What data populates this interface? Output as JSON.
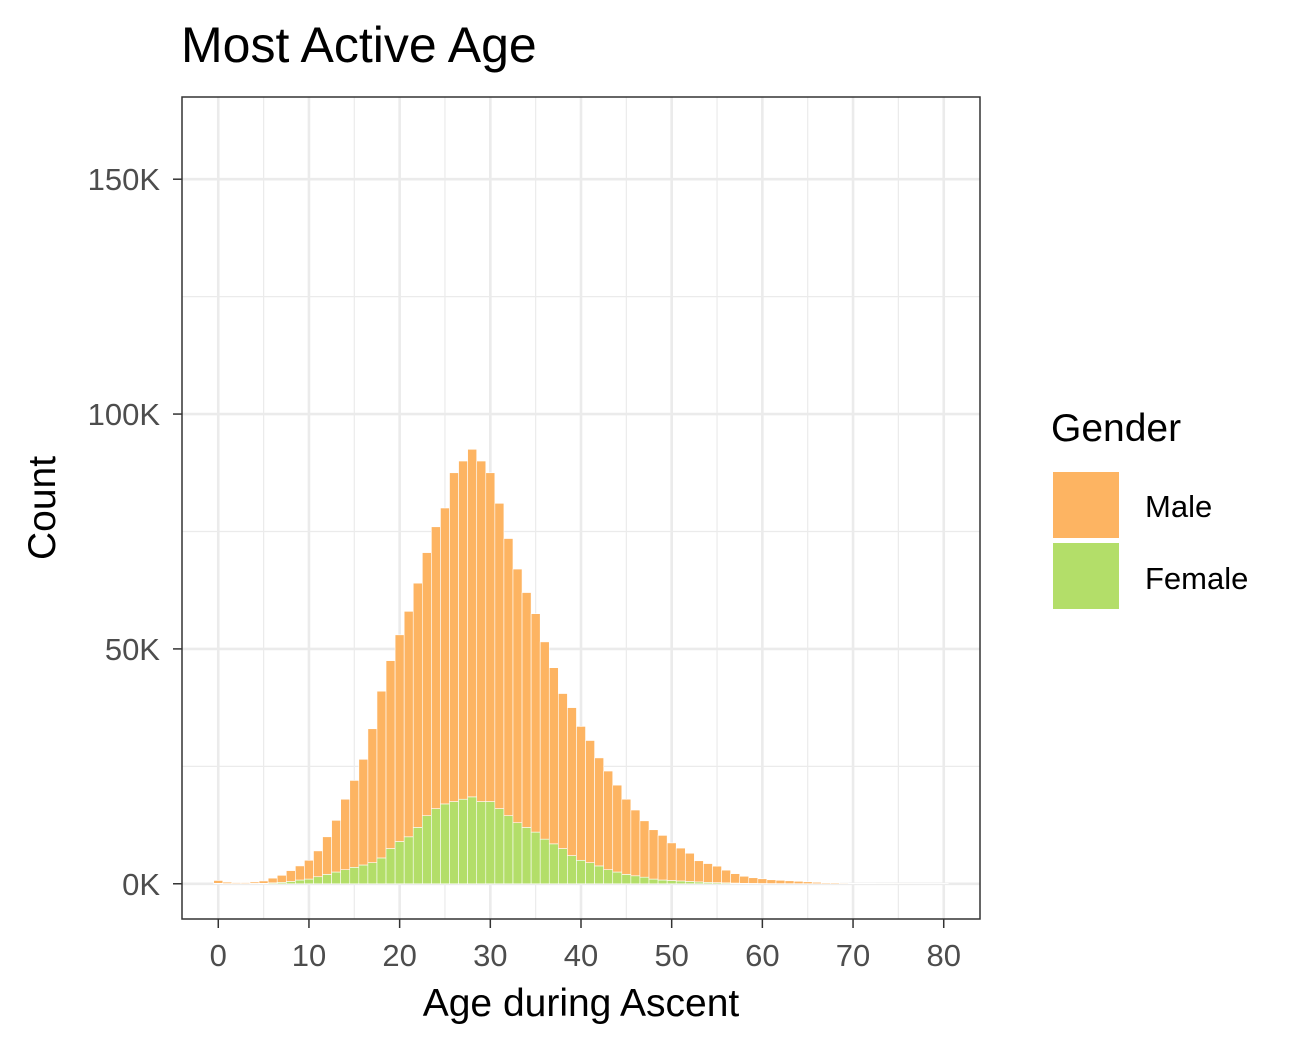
{
  "chart_data": {
    "type": "bar",
    "stacked": true,
    "title": "Most Active Age",
    "xlabel": "Age during Ascent",
    "ylabel": "Count",
    "xlim": [
      -4,
      84
    ],
    "ylim": [
      -7500,
      167500
    ],
    "x_ticks": [
      {
        "value": 0,
        "label": "0"
      },
      {
        "value": 10,
        "label": "10"
      },
      {
        "value": 20,
        "label": "20"
      },
      {
        "value": 30,
        "label": "30"
      },
      {
        "value": 40,
        "label": "40"
      },
      {
        "value": 50,
        "label": "50"
      },
      {
        "value": 60,
        "label": "60"
      },
      {
        "value": 70,
        "label": "70"
      },
      {
        "value": 80,
        "label": "80"
      }
    ],
    "y_ticks": [
      {
        "value": 0,
        "label": "0K"
      },
      {
        "value": 50000,
        "label": "50K"
      },
      {
        "value": 100000,
        "label": "100K"
      },
      {
        "value": 150000,
        "label": "150K"
      }
    ],
    "grid": true,
    "legend": {
      "title": "Gender",
      "position": "right"
    },
    "x": [
      0,
      1,
      2,
      3,
      4,
      5,
      6,
      7,
      8,
      9,
      10,
      11,
      12,
      13,
      14,
      15,
      16,
      17,
      18,
      19,
      20,
      21,
      22,
      23,
      24,
      25,
      26,
      27,
      28,
      29,
      30,
      31,
      32,
      33,
      34,
      35,
      36,
      37,
      38,
      39,
      40,
      41,
      42,
      43,
      44,
      45,
      46,
      47,
      48,
      49,
      50,
      51,
      52,
      53,
      54,
      55,
      56,
      57,
      58,
      59,
      60,
      61,
      62,
      63,
      64,
      65,
      66,
      67,
      68,
      69,
      70,
      71,
      72,
      73,
      74,
      75,
      76,
      77,
      78,
      79,
      80
    ],
    "series": [
      {
        "name": "Male",
        "color": "#FDB462",
        "values": [
          600,
          300,
          200,
          200,
          300,
          500,
          1000,
          1500,
          2300,
          3000,
          4000,
          5500,
          8000,
          11000,
          15000,
          18500,
          22500,
          28500,
          35500,
          40000,
          44000,
          48000,
          52000,
          56000,
          60000,
          63000,
          70000,
          72000,
          74000,
          72500,
          70000,
          65000,
          59000,
          54000,
          50000,
          46500,
          42000,
          37500,
          33000,
          31500,
          28500,
          26000,
          23000,
          21000,
          18500,
          16000,
          14000,
          12000,
          10500,
          9500,
          8000,
          7000,
          6000,
          4500,
          4000,
          3500,
          2700,
          2000,
          1500,
          1200,
          1000,
          800,
          700,
          600,
          500,
          400,
          300,
          200,
          200,
          150,
          100,
          100,
          100,
          80,
          80,
          60,
          60,
          50,
          50,
          50,
          50
        ]
      },
      {
        "name": "Female",
        "color": "#B3DE69",
        "values": [
          100,
          50,
          50,
          50,
          80,
          100,
          200,
          300,
          500,
          800,
          1000,
          1500,
          2000,
          2500,
          3000,
          3500,
          4000,
          4500,
          5500,
          7500,
          9000,
          10000,
          12000,
          14500,
          16000,
          17000,
          17500,
          18000,
          18500,
          17500,
          17500,
          16000,
          14500,
          13000,
          12000,
          11000,
          9500,
          8500,
          7500,
          6000,
          5000,
          4500,
          3800,
          3000,
          2500,
          2000,
          1700,
          1400,
          1000,
          800,
          700,
          600,
          500,
          400,
          300,
          250,
          200,
          150,
          100,
          80,
          60,
          50,
          40,
          30,
          25,
          20,
          15,
          10,
          10,
          10,
          10,
          10,
          10,
          10,
          10,
          10,
          10,
          10,
          10,
          10,
          10
        ]
      }
    ]
  }
}
